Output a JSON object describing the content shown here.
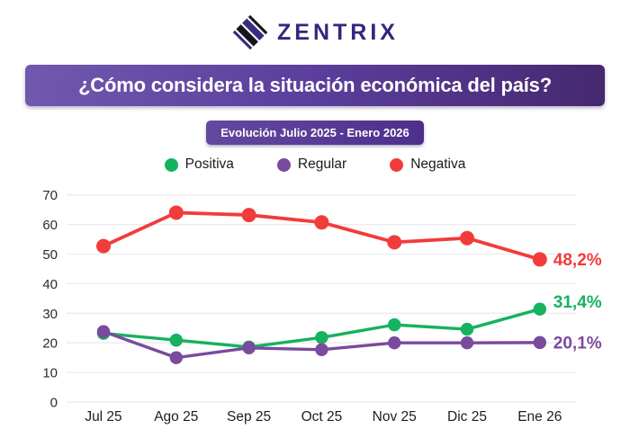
{
  "logo": {
    "text": "ZENTRIX"
  },
  "title_banner": {
    "text": "¿Cómo considera la situación económica del país?"
  },
  "subtitle_badge": {
    "text": "Evolución Julio 2025 - Enero 2026"
  },
  "legend": [
    {
      "label": "Positiva",
      "color": "#15b25f"
    },
    {
      "label": "Regular",
      "color": "#7a4a9d"
    },
    {
      "label": "Negativa",
      "color": "#f23b3b"
    }
  ],
  "chart_data": {
    "type": "line",
    "title": "¿Cómo considera la situación económica del país?",
    "subtitle": "Evolución Julio 2025 - Enero 2026",
    "categories": [
      "Jul 25",
      "Ago 25",
      "Sep 25",
      "Oct 25",
      "Nov 25",
      "Dic 25",
      "Ene 26"
    ],
    "series": [
      {
        "name": "Positiva",
        "color": "#15b25f",
        "values": [
          23.2,
          20.9,
          18.6,
          21.8,
          26.1,
          24.6,
          31.4
        ],
        "end_label": "31,4%"
      },
      {
        "name": "Regular",
        "color": "#7a4a9d",
        "values": [
          23.8,
          15.0,
          18.3,
          17.7,
          20.0,
          20.0,
          20.1
        ],
        "end_label": "20,1%"
      },
      {
        "name": "Negativa",
        "color": "#f23b3b",
        "values": [
          52.7,
          64.0,
          63.2,
          60.7,
          54.0,
          55.4,
          48.2
        ],
        "end_label": "48,2%"
      }
    ],
    "ylim": [
      0,
      70
    ],
    "yticks": [
      0,
      10,
      20,
      30,
      40,
      50,
      60,
      70
    ],
    "xlabel": "",
    "ylabel": "",
    "grid": true,
    "legend_position": "top"
  }
}
